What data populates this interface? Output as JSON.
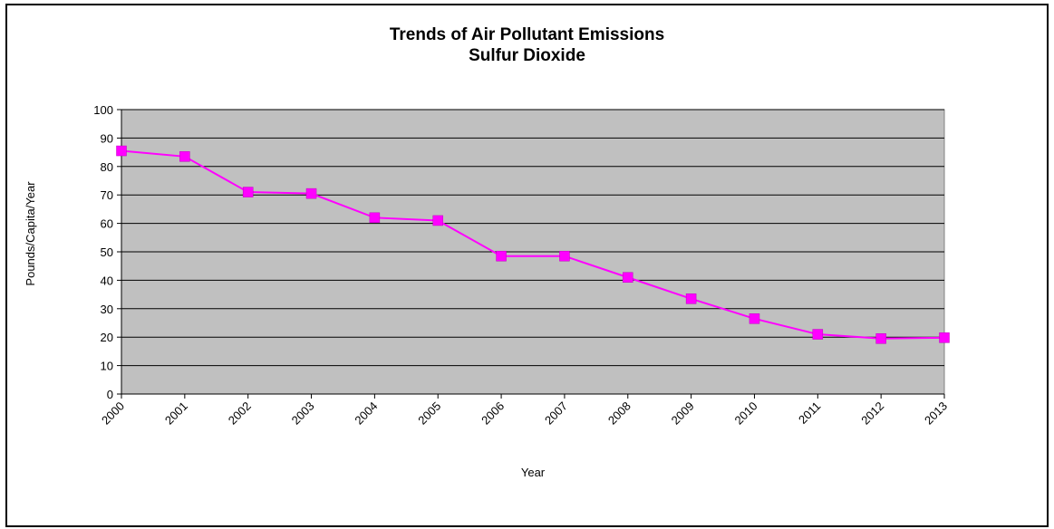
{
  "chart_data": {
    "type": "line",
    "title": "Trends of Air Pollutant Emissions",
    "subtitle": "Sulfur Dioxide",
    "xlabel": "Year",
    "ylabel": "Pounds/Capita/Year",
    "categories": [
      "2000",
      "2001",
      "2002",
      "2003",
      "2004",
      "2005",
      "2006",
      "2007",
      "2008",
      "2009",
      "2010",
      "2011",
      "2012",
      "2013"
    ],
    "series": [
      {
        "values": [
          85.5,
          83.5,
          71,
          70.5,
          62,
          61,
          48.5,
          48.5,
          41,
          33.5,
          26.5,
          21,
          19.5,
          19.8
        ]
      }
    ],
    "ylim": [
      0,
      100
    ],
    "yticks": [
      0,
      10,
      20,
      30,
      40,
      50,
      60,
      70,
      80,
      90,
      100
    ],
    "grid": true,
    "legend": "none",
    "colors": {
      "plot_background": "#c0c0c0",
      "series": "#ff00ff",
      "grid": "#000000"
    }
  }
}
